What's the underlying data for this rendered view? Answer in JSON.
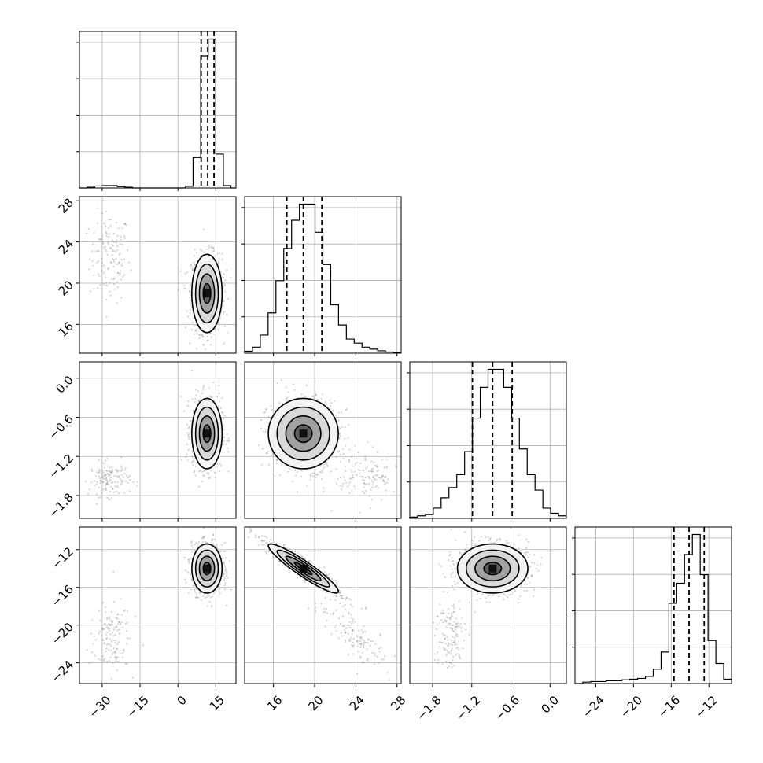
{
  "chart_data": {
    "type": "corner",
    "parameters": [
      {
        "ticks": [
          "−30",
          "−15",
          "0",
          "15"
        ],
        "tick_values": [
          -30,
          -15,
          0,
          15
        ],
        "range": [
          -39,
          23
        ]
      },
      {
        "ticks": [
          "16",
          "20",
          "24",
          "28"
        ],
        "tick_values": [
          16,
          20,
          24,
          28
        ],
        "range": [
          13.2,
          28.4
        ]
      },
      {
        "ticks": [
          "−1.8",
          "−1.2",
          "−0.6",
          "0.0"
        ],
        "tick_values": [
          -1.8,
          -1.2,
          -0.6,
          0.0
        ],
        "range": [
          -2.15,
          0.25
        ]
      },
      {
        "ticks": [
          "−24",
          "−20",
          "−16",
          "−12"
        ],
        "tick_values": [
          -24,
          -20,
          -16,
          -12
        ],
        "range": [
          -26.2,
          -9.6
        ]
      }
    ],
    "quantiles": [
      [
        9.2,
        11.8,
        14.3
      ],
      [
        17.3,
        18.9,
        20.7
      ],
      [
        -1.19,
        -0.88,
        -0.58
      ],
      [
        -15.7,
        -14.1,
        -12.5
      ]
    ],
    "histograms": [
      {
        "edges": [
          -39,
          -36,
          -33,
          -30,
          -27,
          -24,
          -21,
          -18,
          -15,
          -12,
          -9,
          -6,
          -3,
          0,
          3,
          6,
          9,
          12,
          15,
          18,
          21,
          23
        ],
        "counts": [
          0,
          0.2,
          0.6,
          0.7,
          0.7,
          0.4,
          0.2,
          0,
          0,
          0,
          0,
          0,
          0,
          0,
          0.5,
          9,
          39,
          44,
          10,
          0.7,
          0
        ]
      },
      {
        "edges": [
          13.2,
          13.96,
          14.72,
          15.48,
          16.24,
          17.0,
          17.76,
          18.52,
          19.28,
          20.04,
          20.8,
          21.56,
          22.32,
          23.08,
          23.84,
          24.6,
          25.36,
          26.12,
          26.88,
          27.64,
          28.4
        ],
        "counts": [
          0.5,
          1.5,
          4.5,
          10,
          18,
          26,
          33,
          37,
          37,
          30,
          22,
          12,
          7,
          3.5,
          2.5,
          1.5,
          1,
          0.6,
          0.3,
          0.1
        ]
      },
      {
        "edges": [
          -2.15,
          -2.03,
          -1.91,
          -1.79,
          -1.67,
          -1.55,
          -1.43,
          -1.31,
          -1.19,
          -1.07,
          -0.95,
          -0.83,
          -0.71,
          -0.59,
          -0.47,
          -0.35,
          -0.23,
          -0.11,
          0.01,
          0.13,
          0.25
        ],
        "counts": [
          0.5,
          1,
          1.5,
          4,
          8,
          12,
          17,
          26,
          39,
          51,
          58,
          58,
          51,
          39,
          27,
          17,
          11,
          4,
          2,
          1
        ]
      },
      {
        "edges": [
          -26.2,
          -25.37,
          -24.54,
          -23.71,
          -22.88,
          -22.05,
          -21.22,
          -20.39,
          -19.56,
          -18.73,
          -17.9,
          -17.07,
          -16.24,
          -15.41,
          -14.58,
          -13.75,
          -12.92,
          -12.09,
          -11.26,
          -10.43,
          -9.6
        ],
        "counts": [
          0,
          0.5,
          0.7,
          0.7,
          1,
          1,
          1.3,
          1.5,
          1.8,
          2.5,
          5,
          11,
          28,
          35,
          45,
          52,
          38,
          15,
          7,
          1.5
        ]
      }
    ],
    "pairs": [
      {
        "x": 0,
        "y": 1,
        "core": {
          "cx": 11.5,
          "cy": 19.0,
          "sx": 3.0,
          "sy": 1.9,
          "rho": 0.0
        },
        "tail": {
          "cx": -27,
          "cy": 22.5,
          "sx": 4.0,
          "sy": 2.2,
          "rho": 0.0
        }
      },
      {
        "x": 0,
        "y": 2,
        "core": {
          "cx": 11.5,
          "cy": -0.85,
          "sx": 3.0,
          "sy": 0.27,
          "rho": 0.0
        },
        "tail": {
          "cx": -27,
          "cy": -1.55,
          "sx": 4.0,
          "sy": 0.13,
          "rho": 0.0
        }
      },
      {
        "x": 0,
        "y": 3,
        "core": {
          "cx": 11.5,
          "cy": -14.0,
          "sx": 3.0,
          "sy": 1.3,
          "rho": 0.0
        },
        "tail": {
          "cx": -27,
          "cy": -21.5,
          "sx": 4.0,
          "sy": 2.0,
          "rho": 0.2
        }
      },
      {
        "x": 1,
        "y": 2,
        "core": {
          "cx": 18.9,
          "cy": -0.85,
          "sx": 1.7,
          "sy": 0.27,
          "rho": 0.0
        },
        "tail": {
          "cx": 25,
          "cy": -1.5,
          "sx": 1.5,
          "sy": 0.2,
          "rho": 0.0
        }
      },
      {
        "x": 1,
        "y": 3,
        "core": {
          "cx": 18.9,
          "cy": -14.0,
          "sx": 1.7,
          "sy": 1.3,
          "rho": -0.93
        },
        "tail": {
          "cx": 24,
          "cy": -21.0,
          "sx": 1.8,
          "sy": 2.0,
          "rho": -0.8
        }
      },
      {
        "x": 2,
        "y": 3,
        "core": {
          "cx": -0.88,
          "cy": -14.0,
          "sx": 0.27,
          "sy": 1.3,
          "rho": 0.0
        },
        "tail": {
          "cx": -1.55,
          "cy": -21.0,
          "sx": 0.12,
          "sy": 2.0,
          "rho": 0.0
        }
      }
    ],
    "grid": true,
    "contour_levels": [
      "0.5σ",
      "1σ",
      "1.5σ",
      "2σ"
    ]
  }
}
